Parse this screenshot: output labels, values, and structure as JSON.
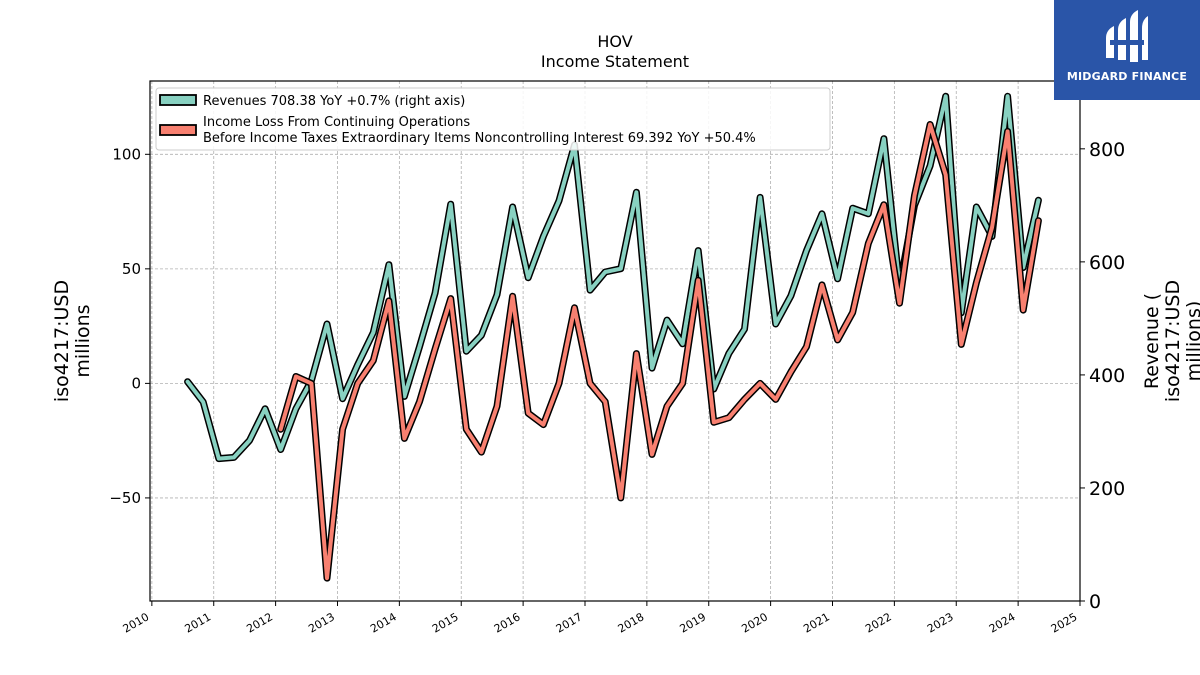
{
  "chart_data": {
    "type": "line",
    "title": "HOV",
    "subtitle": "Income Statement",
    "ylabel_left": "iso4217:USD\nmillions",
    "ylabel_right": "Revenue (\niso4217:USD\nmillions)",
    "x_ticks": [
      "2010",
      "2011",
      "2012",
      "2013",
      "2014",
      "2015",
      "2016",
      "2017",
      "2018",
      "2019",
      "2020",
      "2021",
      "2022",
      "2023",
      "2024",
      "2025"
    ],
    "left_ticks": [
      "100",
      "50",
      "0",
      "−50"
    ],
    "right_ticks": [
      "800",
      "600",
      "400",
      "200",
      "0"
    ],
    "ylim_left": [
      -95,
      132
    ],
    "ylim_right": [
      0,
      920
    ],
    "xlim": [
      2009.97,
      2025.0
    ],
    "grid": true,
    "legend_position": "top-left",
    "series": [
      {
        "name": "Revenues",
        "legend_label": "Revenues  708.38 YoY +0.7% (right axis)",
        "axis": "right",
        "color": "#88d1c1",
        "points": [
          [
            "2010-07-31",
            388
          ],
          [
            "2010-10-31",
            352
          ],
          [
            "2011-01-31",
            252
          ],
          [
            "2011-04-30",
            254
          ],
          [
            "2011-07-31",
            284
          ],
          [
            "2011-10-31",
            340
          ],
          [
            "2012-01-31",
            268
          ],
          [
            "2012-04-30",
            340
          ],
          [
            "2012-07-31",
            390
          ],
          [
            "2012-10-31",
            490
          ],
          [
            "2013-01-31",
            358
          ],
          [
            "2013-04-30",
            418
          ],
          [
            "2013-07-31",
            475
          ],
          [
            "2013-10-31",
            595
          ],
          [
            "2014-01-31",
            362
          ],
          [
            "2014-04-30",
            450
          ],
          [
            "2014-07-31",
            545
          ],
          [
            "2014-10-31",
            702
          ],
          [
            "2015-01-31",
            442
          ],
          [
            "2015-04-30",
            470
          ],
          [
            "2015-07-31",
            542
          ],
          [
            "2015-10-31",
            697
          ],
          [
            "2016-01-31",
            572
          ],
          [
            "2016-04-30",
            645
          ],
          [
            "2016-07-31",
            708
          ],
          [
            "2016-10-31",
            807
          ],
          [
            "2017-01-31",
            550
          ],
          [
            "2017-04-30",
            582
          ],
          [
            "2017-07-31",
            588
          ],
          [
            "2017-10-31",
            723
          ],
          [
            "2018-01-31",
            412
          ],
          [
            "2018-04-30",
            497
          ],
          [
            "2018-07-31",
            455
          ],
          [
            "2018-10-31",
            620
          ],
          [
            "2019-01-31",
            375
          ],
          [
            "2019-04-30",
            438
          ],
          [
            "2019-07-31",
            481
          ],
          [
            "2019-10-31",
            714
          ],
          [
            "2020-01-31",
            490
          ],
          [
            "2020-04-30",
            540
          ],
          [
            "2020-07-31",
            620
          ],
          [
            "2020-10-31",
            685
          ],
          [
            "2021-01-31",
            570
          ],
          [
            "2021-04-30",
            695
          ],
          [
            "2021-07-31",
            685
          ],
          [
            "2021-10-31",
            818
          ],
          [
            "2022-01-31",
            556
          ],
          [
            "2022-04-30",
            700
          ],
          [
            "2022-07-31",
            770
          ],
          [
            "2022-10-31",
            893
          ],
          [
            "2023-01-31",
            510
          ],
          [
            "2023-04-30",
            697
          ],
          [
            "2023-07-31",
            645
          ],
          [
            "2023-10-31",
            893
          ],
          [
            "2024-01-31",
            590
          ],
          [
            "2024-04-30",
            709
          ]
        ]
      },
      {
        "name": "Income Loss From Continuing Operations Before Income Taxes Extraordinary Items Noncontrolling Interest",
        "legend_label_line1": "Income Loss From Continuing Operations",
        "legend_label_line2": "Before Income Taxes Extraordinary Items Noncontrolling Interest  69.392 YoY +50.4%",
        "axis": "left",
        "color": "#f88070",
        "points": [
          [
            "2012-01-31",
            -20
          ],
          [
            "2012-04-30",
            3
          ],
          [
            "2012-07-31",
            0
          ],
          [
            "2012-10-31",
            -85
          ],
          [
            "2013-01-31",
            -20
          ],
          [
            "2013-04-30",
            0
          ],
          [
            "2013-07-31",
            10
          ],
          [
            "2013-10-31",
            36
          ],
          [
            "2014-01-31",
            -24
          ],
          [
            "2014-04-30",
            -8
          ],
          [
            "2014-07-31",
            15
          ],
          [
            "2014-10-31",
            37
          ],
          [
            "2015-01-31",
            -20
          ],
          [
            "2015-04-30",
            -30
          ],
          [
            "2015-07-31",
            -10
          ],
          [
            "2015-10-31",
            38
          ],
          [
            "2016-01-31",
            -13
          ],
          [
            "2016-04-30",
            -18
          ],
          [
            "2016-07-31",
            0
          ],
          [
            "2016-10-31",
            33
          ],
          [
            "2017-01-31",
            0
          ],
          [
            "2017-04-30",
            -8
          ],
          [
            "2017-07-31",
            -50
          ],
          [
            "2017-10-31",
            13
          ],
          [
            "2018-01-31",
            -31
          ],
          [
            "2018-04-30",
            -10
          ],
          [
            "2018-07-31",
            0
          ],
          [
            "2018-10-31",
            45
          ],
          [
            "2019-01-31",
            -17
          ],
          [
            "2019-04-30",
            -15
          ],
          [
            "2019-07-31",
            -7
          ],
          [
            "2019-10-31",
            0
          ],
          [
            "2020-01-31",
            -7
          ],
          [
            "2020-04-30",
            5
          ],
          [
            "2020-07-31",
            16
          ],
          [
            "2020-10-31",
            43
          ],
          [
            "2021-01-31",
            19
          ],
          [
            "2021-04-30",
            31
          ],
          [
            "2021-07-31",
            61
          ],
          [
            "2021-10-31",
            78
          ],
          [
            "2022-01-31",
            35
          ],
          [
            "2022-04-30",
            82
          ],
          [
            "2022-07-31",
            113
          ],
          [
            "2022-10-31",
            91
          ],
          [
            "2023-01-31",
            17
          ],
          [
            "2023-04-30",
            44
          ],
          [
            "2023-07-31",
            68
          ],
          [
            "2023-10-31",
            110
          ],
          [
            "2024-01-31",
            32
          ],
          [
            "2024-04-30",
            71
          ]
        ]
      }
    ]
  },
  "brand": {
    "name": "MIDGARD FINANCE",
    "background": "#2a55a8",
    "foreground": "#ffffff"
  }
}
